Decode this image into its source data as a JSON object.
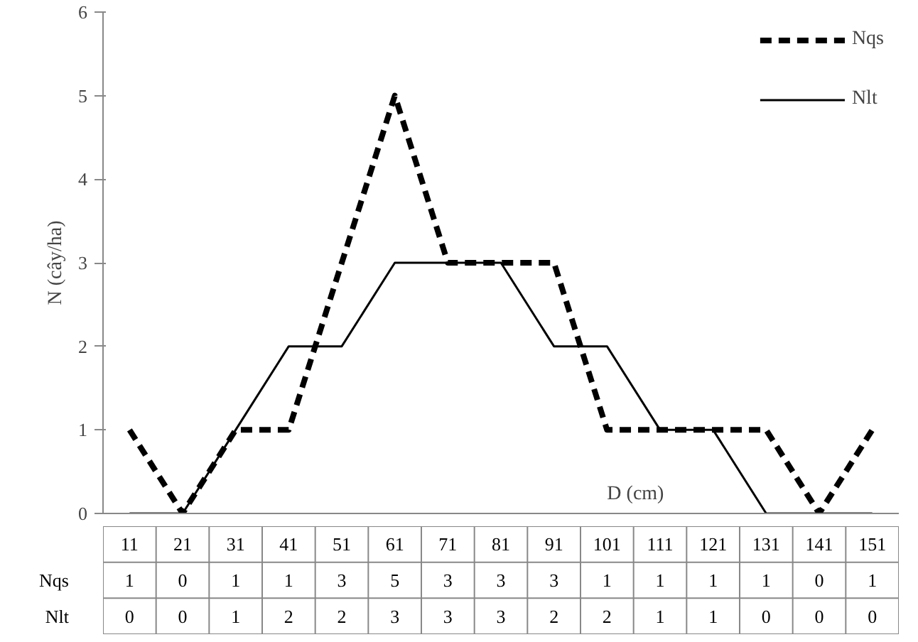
{
  "chart_data": {
    "type": "line",
    "xlabel": "D (cm)",
    "ylabel": "N (cây/ha)",
    "categories": [
      "11",
      "21",
      "31",
      "41",
      "51",
      "61",
      "71",
      "81",
      "91",
      "101",
      "111",
      "121",
      "131",
      "141",
      "151"
    ],
    "series": [
      {
        "name": "Nqs",
        "color": "#000000",
        "line_style": "dashed",
        "values": [
          1,
          0,
          1,
          1,
          3,
          5,
          3,
          3,
          3,
          1,
          1,
          1,
          1,
          0,
          1
        ]
      },
      {
        "name": "Nlt",
        "color": "#000000",
        "line_style": "solid",
        "values": [
          0,
          0,
          1,
          2,
          2,
          3,
          3,
          3,
          2,
          2,
          1,
          1,
          0,
          0,
          0
        ]
      }
    ],
    "ylim": [
      0,
      6
    ],
    "yticks": [
      0,
      1,
      2,
      3,
      4,
      5,
      6
    ],
    "legend": "top right",
    "data_labels": true
  }
}
